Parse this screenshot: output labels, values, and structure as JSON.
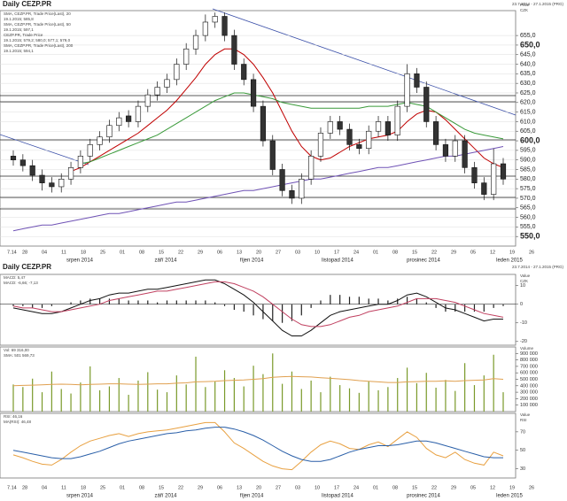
{
  "x_axis": {
    "year_mark": "7.14",
    "ticks": [
      "28",
      "04",
      "11",
      "18",
      "25",
      "01",
      "08",
      "15",
      "22",
      "29",
      "06",
      "13",
      "20",
      "27",
      "03",
      "10",
      "17",
      "24",
      "01",
      "08",
      "15",
      "22",
      "29",
      "05",
      "12",
      "19",
      "26"
    ],
    "months": [
      "srpen 2014",
      "září 2014",
      "říjen 2014",
      "listopad 2014",
      "prosinec 2014",
      "leden 2015"
    ]
  },
  "chart_data": [
    {
      "type": "candlestick",
      "title": "Daily CEZP.PR",
      "subtitle": "23.7.2014 - 27.1.2015 (PRG)",
      "unit_labels": [
        "Price",
        "CZK"
      ],
      "legend_texts": [
        "SMA, CEZP.PR, Trade Price(Last), 20",
        "19.1.2015; 585,8",
        "SMA, CEZP.PR, Trade Price(Last), 50",
        "19.1.2015; 597,1",
        "CEZP.PR, Trade Price",
        "19.1.2015; 579,2; 580,0; 577,1; 579,0",
        "SMA, CEZP.PR, Trade Price(Last), 200",
        "19.1.2015; 594,1"
      ],
      "ylim": [
        545,
        668
      ],
      "grid": true,
      "yticks": [
        {
          "value": 550,
          "label": "550,0"
        },
        {
          "value": 555,
          "label": "555,0"
        },
        {
          "value": 560,
          "label": "560,0"
        },
        {
          "value": 565,
          "label": "565,0"
        },
        {
          "value": 570,
          "label": "570,0"
        },
        {
          "value": 575,
          "label": "575,0"
        },
        {
          "value": 580,
          "label": "580,0"
        },
        {
          "value": 585,
          "label": "585,0"
        },
        {
          "value": 590,
          "label": "590,0"
        },
        {
          "value": 595,
          "label": "595,0"
        },
        {
          "value": 600,
          "label": "600,0"
        },
        {
          "value": 605,
          "label": "605,0"
        },
        {
          "value": 610,
          "label": "610,0"
        },
        {
          "value": 615,
          "label": "615,0"
        },
        {
          "value": 620,
          "label": "620,0"
        },
        {
          "value": 625,
          "label": "625,0"
        },
        {
          "value": 630,
          "label": "630,0"
        },
        {
          "value": 635,
          "label": "635,0"
        },
        {
          "value": 640,
          "label": "640,0"
        },
        {
          "value": 645,
          "label": "645,0"
        },
        {
          "value": 650,
          "label": "650,0"
        },
        {
          "value": 655,
          "label": "655,0"
        }
      ],
      "candles": {
        "open": [
          592,
          590,
          587,
          582,
          578,
          576,
          580,
          586,
          592,
          598,
          602,
          608,
          613,
          610,
          618,
          624,
          628,
          632,
          640,
          648,
          655,
          662,
          665,
          655,
          640,
          632,
          618,
          600,
          585,
          574,
          570,
          580,
          592,
          604,
          610,
          606,
          598,
          596,
          605,
          610,
          603,
          618,
          635,
          628,
          610,
          598,
          592,
          600,
          586,
          578,
          572,
          588
        ],
        "high": [
          595,
          593,
          590,
          585,
          581,
          583,
          589,
          595,
          601,
          605,
          611,
          615,
          616,
          621,
          627,
          631,
          635,
          643,
          651,
          658,
          666,
          667,
          667,
          658,
          643,
          635,
          621,
          603,
          588,
          577,
          583,
          595,
          607,
          613,
          613,
          609,
          601,
          608,
          613,
          613,
          621,
          640,
          638,
          631,
          613,
          601,
          603,
          603,
          589,
          581,
          596,
          591
        ],
        "low": [
          587,
          584,
          579,
          574,
          573,
          573,
          577,
          583,
          589,
          595,
          599,
          605,
          607,
          607,
          615,
          621,
          625,
          629,
          637,
          645,
          652,
          659,
          652,
          637,
          629,
          615,
          597,
          582,
          571,
          567,
          567,
          577,
          589,
          601,
          603,
          595,
          593,
          593,
          602,
          600,
          600,
          615,
          625,
          607,
          595,
          589,
          589,
          583,
          575,
          569,
          569,
          577
        ],
        "close": [
          590,
          587,
          582,
          578,
          576,
          580,
          586,
          592,
          598,
          602,
          608,
          612,
          610,
          618,
          624,
          628,
          632,
          640,
          648,
          655,
          662,
          665,
          655,
          640,
          632,
          618,
          600,
          585,
          574,
          570,
          580,
          592,
          604,
          610,
          606,
          598,
          596,
          605,
          610,
          603,
          618,
          635,
          628,
          610,
          598,
          592,
          600,
          586,
          578,
          572,
          588,
          580
        ]
      },
      "series": [
        {
          "color": "#c00000",
          "values": [
            null,
            null,
            null,
            null,
            null,
            null,
            584,
            586,
            589,
            592,
            595,
            598,
            601,
            604,
            608,
            612,
            616,
            621,
            627,
            633,
            640,
            645,
            648,
            648,
            645,
            640,
            633,
            625,
            615,
            605,
            597,
            592,
            590,
            591,
            594,
            597,
            599,
            601,
            602,
            603,
            605,
            610,
            614,
            616,
            615,
            611,
            606,
            601,
            596,
            591,
            588,
            586
          ]
        },
        {
          "color": "#3a9a3a",
          "values": [
            null,
            null,
            null,
            null,
            null,
            null,
            null,
            588,
            589,
            591,
            593,
            595,
            597,
            599,
            601,
            603,
            606,
            609,
            612,
            615,
            618,
            621,
            623,
            625,
            625,
            624,
            623,
            622,
            620,
            619,
            618,
            617,
            617,
            617,
            617,
            617,
            617,
            618,
            618,
            618,
            619,
            620,
            619,
            618,
            615,
            612,
            609,
            606,
            604,
            603,
            602,
            601
          ]
        },
        {
          "color": "#6f52b5",
          "values": [
            553,
            554,
            555,
            556,
            556,
            557,
            558,
            559,
            560,
            561,
            562,
            562,
            563,
            564,
            565,
            566,
            567,
            568,
            568,
            569,
            570,
            571,
            572,
            573,
            574,
            574,
            575,
            576,
            577,
            578,
            579,
            580,
            580,
            581,
            582,
            583,
            584,
            585,
            586,
            586,
            587,
            588,
            589,
            590,
            591,
            592,
            592,
            593,
            594,
            595,
            596,
            597
          ]
        }
      ]
    },
    {
      "type": "lines",
      "title": "Daily CEZP.PR",
      "subtitle": "23.7.2014 - 27.1.2015 (PRG)",
      "unit_labels": [
        "Value",
        "CZK"
      ],
      "legend_texts": [
        "MACD: 5,47",
        "MACD: -6,66; -7,13"
      ],
      "ylim": [
        -22,
        16
      ],
      "yticks": [
        10,
        0,
        -10,
        -20
      ],
      "series": [
        {
          "type": "bar",
          "color": "#222",
          "values": [
            -1,
            -1,
            -2,
            -2,
            -1,
            0,
            1,
            2,
            3,
            3,
            3,
            3,
            2,
            2,
            2,
            1,
            2,
            2,
            2,
            2,
            2,
            1,
            -1,
            -3,
            -4,
            -6,
            -8,
            -9,
            -10,
            -9,
            -6,
            -2,
            2,
            5,
            5,
            4,
            4,
            3,
            3,
            2,
            3,
            4,
            3,
            1,
            -2,
            -4,
            -4,
            -4,
            -4,
            -4,
            -2,
            -1
          ]
        },
        {
          "color": "#111",
          "values": [
            -2,
            -3,
            -4,
            -5,
            -5,
            -4,
            -2,
            0,
            2,
            3,
            5,
            6,
            6,
            7,
            8,
            8,
            9,
            10,
            11,
            12,
            13,
            13,
            11,
            8,
            5,
            1,
            -4,
            -9,
            -14,
            -17,
            -17,
            -14,
            -10,
            -6,
            -4,
            -3,
            -2,
            -1,
            0,
            0,
            2,
            5,
            6,
            4,
            1,
            -2,
            -3,
            -5,
            -7,
            -9,
            -8,
            -8
          ]
        },
        {
          "color": "#c04060",
          "values": [
            -1,
            -2,
            -2,
            -3,
            -4,
            -4,
            -3,
            -2,
            -1,
            0,
            2,
            3,
            4,
            5,
            6,
            7,
            7,
            8,
            9,
            10,
            11,
            12,
            12,
            11,
            9,
            7,
            4,
            0,
            -4,
            -8,
            -11,
            -12,
            -12,
            -11,
            -9,
            -7,
            -6,
            -4,
            -3,
            -2,
            -1,
            1,
            3,
            3,
            3,
            2,
            1,
            -1,
            -3,
            -5,
            -6,
            -7
          ]
        }
      ]
    },
    {
      "type": "lines",
      "unit_labels": [
        "Volume"
      ],
      "legend_texts": [
        "Vol: 69 316,00",
        "SMA: 501 569,73"
      ],
      "ylim": [
        0,
        1000000
      ],
      "yticks": [
        {
          "value": 100000,
          "label": "100 000"
        },
        {
          "value": 200000,
          "label": "200 000"
        },
        {
          "value": 300000,
          "label": "300 000"
        },
        {
          "value": 400000,
          "label": "400 000"
        },
        {
          "value": 500000,
          "label": "500 000"
        },
        {
          "value": 600000,
          "label": "600 000"
        },
        {
          "value": 700000,
          "label": "700 000"
        },
        {
          "value": 800000,
          "label": "800 000"
        },
        {
          "value": 900000,
          "label": "900 000"
        }
      ],
      "series": [
        {
          "type": "bar",
          "color": "#7a9a2a",
          "values": [
            420000,
            380000,
            510000,
            300000,
            620000,
            350000,
            280000,
            450000,
            700000,
            330000,
            390000,
            520000,
            260000,
            480000,
            610000,
            340000,
            300000,
            560000,
            420000,
            850000,
            380000,
            470000,
            640000,
            520000,
            390000,
            710000,
            580000,
            900000,
            430000,
            620000,
            350000,
            480000,
            300000,
            540000,
            410000,
            360000,
            290000,
            470000,
            330000,
            380000,
            520000,
            680000,
            440000,
            600000,
            370000,
            490000,
            320000,
            750000,
            410000,
            560000,
            880000,
            300000
          ]
        },
        {
          "color": "#e0a050",
          "values": [
            400000,
            405000,
            410000,
            415000,
            420000,
            425000,
            420000,
            415000,
            420000,
            425000,
            430000,
            430000,
            425000,
            420000,
            425000,
            430000,
            430000,
            440000,
            445000,
            460000,
            465000,
            470000,
            480000,
            485000,
            490000,
            500000,
            510000,
            530000,
            540000,
            545000,
            540000,
            535000,
            525000,
            515000,
            505000,
            495000,
            480000,
            470000,
            460000,
            450000,
            450000,
            460000,
            465000,
            470000,
            470000,
            475000,
            470000,
            480000,
            485000,
            490000,
            510000,
            500000
          ]
        }
      ]
    },
    {
      "type": "lines",
      "unit_labels": [
        "Value",
        "RSI"
      ],
      "legend_texts": [
        "RSI: 46,16",
        "MA(RSI): 46,48"
      ],
      "ylim": [
        20,
        90
      ],
      "yticks": [
        30,
        50,
        70
      ],
      "series": [
        {
          "color": "#e8a040",
          "values": [
            45,
            42,
            38,
            35,
            34,
            40,
            48,
            55,
            60,
            63,
            66,
            68,
            65,
            68,
            70,
            71,
            72,
            74,
            76,
            78,
            80,
            80,
            70,
            58,
            52,
            45,
            38,
            33,
            30,
            29,
            38,
            48,
            56,
            60,
            57,
            52,
            51,
            56,
            59,
            54,
            62,
            70,
            64,
            52,
            45,
            42,
            48,
            40,
            36,
            34,
            48,
            44
          ]
        },
        {
          "color": "#2a5fa8",
          "values": [
            50,
            48,
            46,
            44,
            42,
            41,
            41,
            43,
            46,
            49,
            53,
            57,
            60,
            62,
            64,
            66,
            68,
            69,
            71,
            72,
            74,
            75,
            75,
            73,
            70,
            66,
            61,
            55,
            49,
            44,
            40,
            38,
            38,
            40,
            44,
            48,
            51,
            53,
            55,
            55,
            56,
            58,
            60,
            60,
            58,
            55,
            52,
            49,
            46,
            43,
            42,
            42
          ]
        }
      ]
    }
  ]
}
